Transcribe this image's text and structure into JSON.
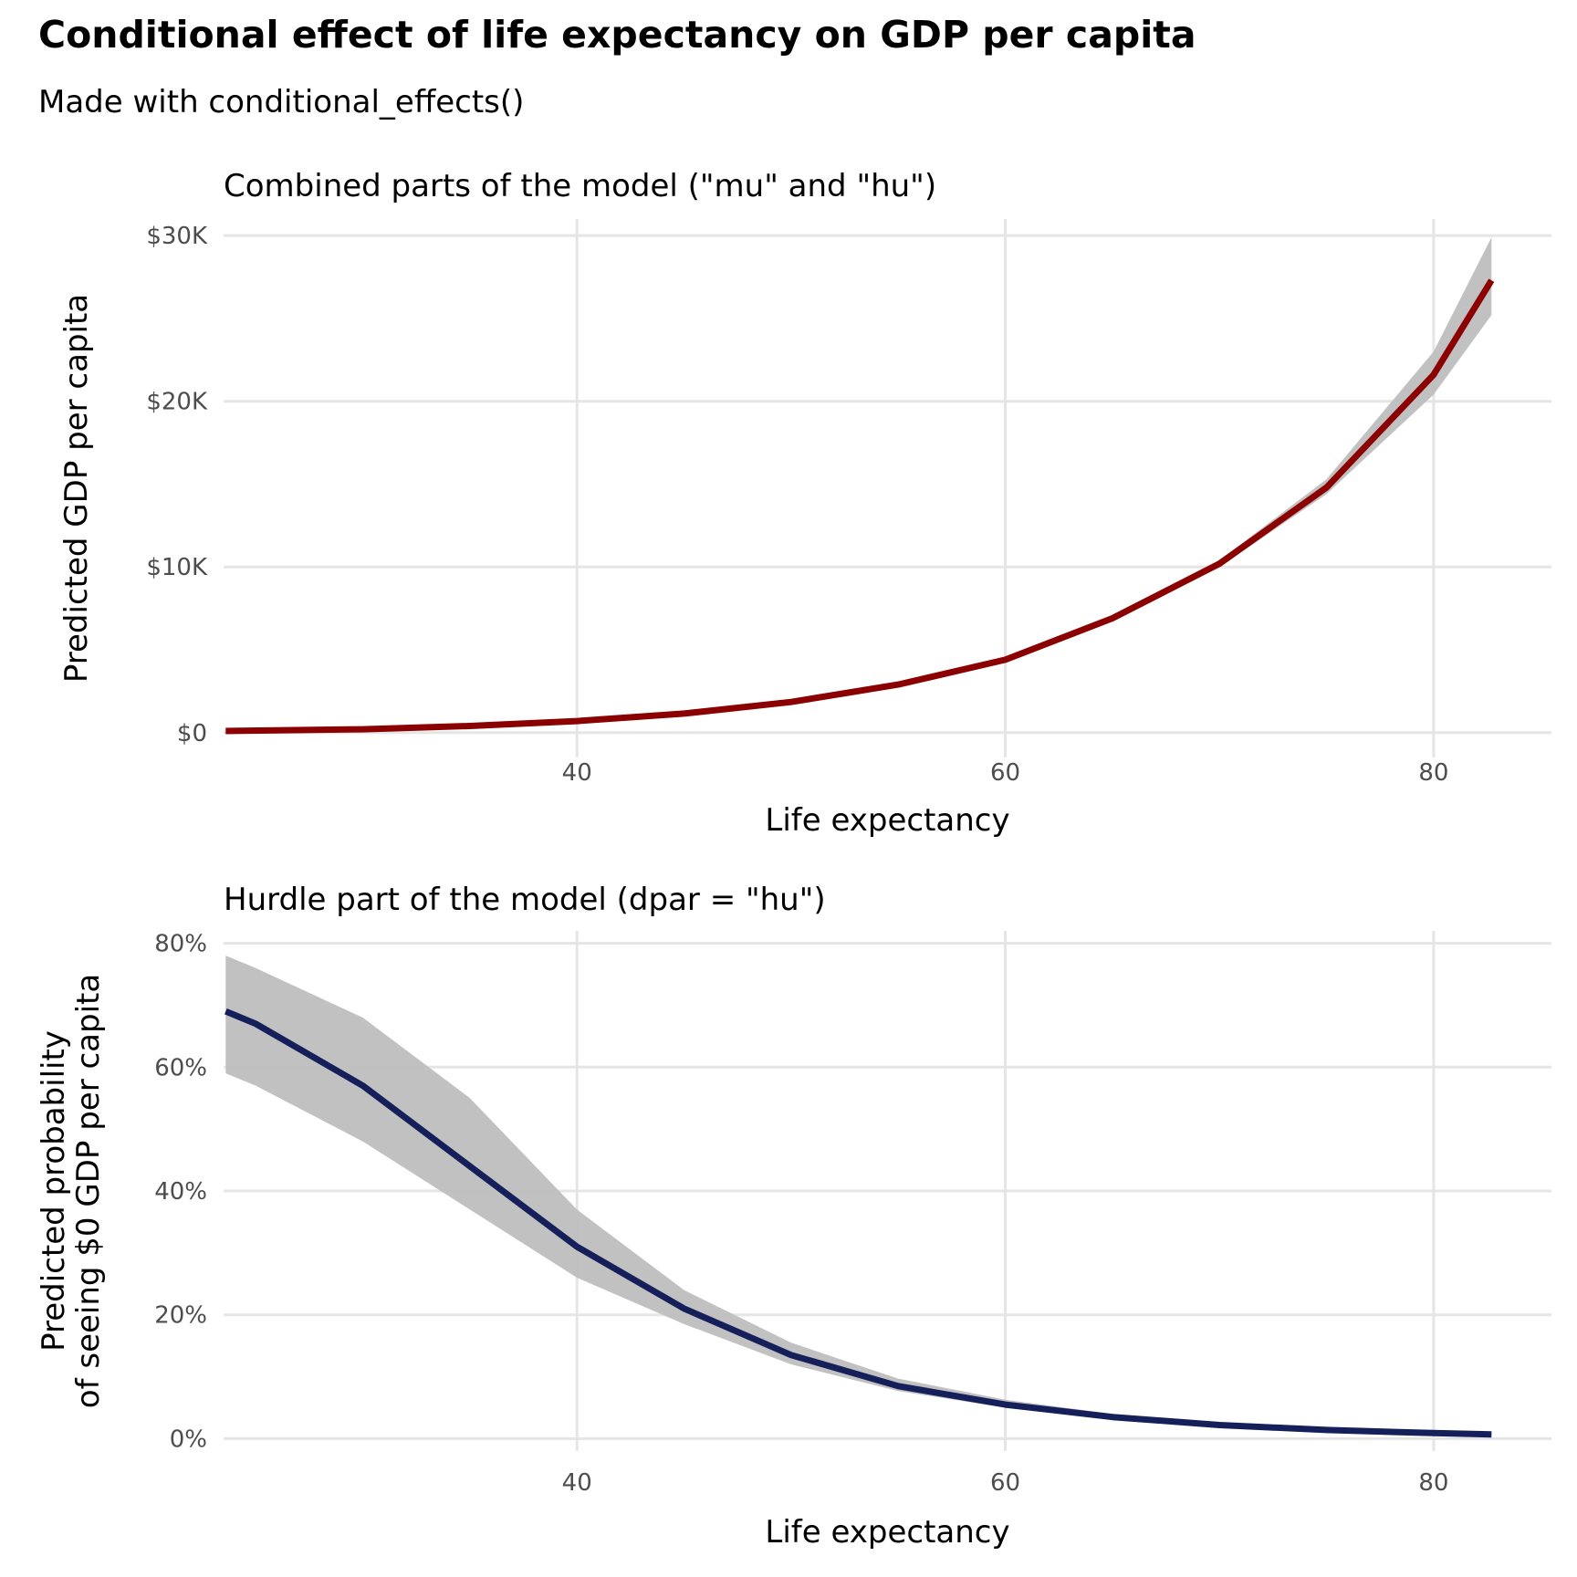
{
  "title": "Conditional effect of life expectancy on GDP per capita",
  "subtitle": "Made with conditional_effects()",
  "colors": {
    "line_top": "#8b0000",
    "line_bottom": "#15205a",
    "ribbon": "#bebebe",
    "grid": "#e5e5e5"
  },
  "chart_data": [
    {
      "type": "line",
      "title": "Combined parts of the model (\"mu\" and \"hu\")",
      "xlabel": "Life expectancy",
      "ylabel": "Predicted GDP per capita",
      "xlim": [
        23.5,
        85.5
      ],
      "ylim": [
        -1500,
        31000
      ],
      "x_ticks": [
        40,
        60,
        80
      ],
      "x_tick_labels": [
        "40",
        "60",
        "80"
      ],
      "y_ticks": [
        0,
        10000,
        20000,
        30000
      ],
      "y_tick_labels": [
        "$0",
        "$10K",
        "$20K",
        "$30K"
      ],
      "grid": true,
      "series": [
        {
          "x": [
            23.6,
            30,
            35,
            40,
            45,
            50,
            55,
            60,
            65,
            70,
            75,
            80,
            82.7
          ],
          "y": [
            100,
            200,
            400,
            700,
            1150,
            1850,
            2900,
            4400,
            6900,
            10200,
            14800,
            21600,
            27300
          ],
          "lower": [
            100,
            200,
            400,
            700,
            1150,
            1850,
            2900,
            4300,
            6700,
            10000,
            14400,
            20400,
            25200
          ],
          "upper": [
            100,
            200,
            400,
            700,
            1150,
            1850,
            2900,
            4500,
            7100,
            10400,
            15300,
            23000,
            29900
          ]
        }
      ]
    },
    {
      "type": "line",
      "title": "Hurdle part of the model (dpar = \"hu\")",
      "xlabel": "Life expectancy",
      "ylabel": [
        "Predicted probability",
        "of seeing $0 GDP per capita"
      ],
      "xlim": [
        23.5,
        85.5
      ],
      "ylim": [
        -0.02,
        0.82
      ],
      "x_ticks": [
        40,
        60,
        80
      ],
      "x_tick_labels": [
        "40",
        "60",
        "80"
      ],
      "y_ticks": [
        0,
        0.2,
        0.4,
        0.6,
        0.8
      ],
      "y_tick_labels": [
        "0%",
        "20%",
        "40%",
        "60%",
        "80%"
      ],
      "grid": true,
      "series": [
        {
          "x": [
            23.6,
            25,
            30,
            35,
            40,
            45,
            50,
            55,
            60,
            65,
            70,
            75,
            80,
            82.7
          ],
          "y": [
            0.69,
            0.67,
            0.57,
            0.44,
            0.31,
            0.21,
            0.135,
            0.085,
            0.055,
            0.035,
            0.022,
            0.014,
            0.009,
            0.007
          ],
          "lower": [
            0.59,
            0.57,
            0.48,
            0.37,
            0.26,
            0.185,
            0.12,
            0.077,
            0.05,
            0.032,
            0.02,
            0.013,
            0.008,
            0.006
          ],
          "upper": [
            0.78,
            0.76,
            0.68,
            0.55,
            0.37,
            0.24,
            0.155,
            0.097,
            0.063,
            0.04,
            0.025,
            0.016,
            0.01,
            0.008
          ]
        }
      ]
    }
  ]
}
